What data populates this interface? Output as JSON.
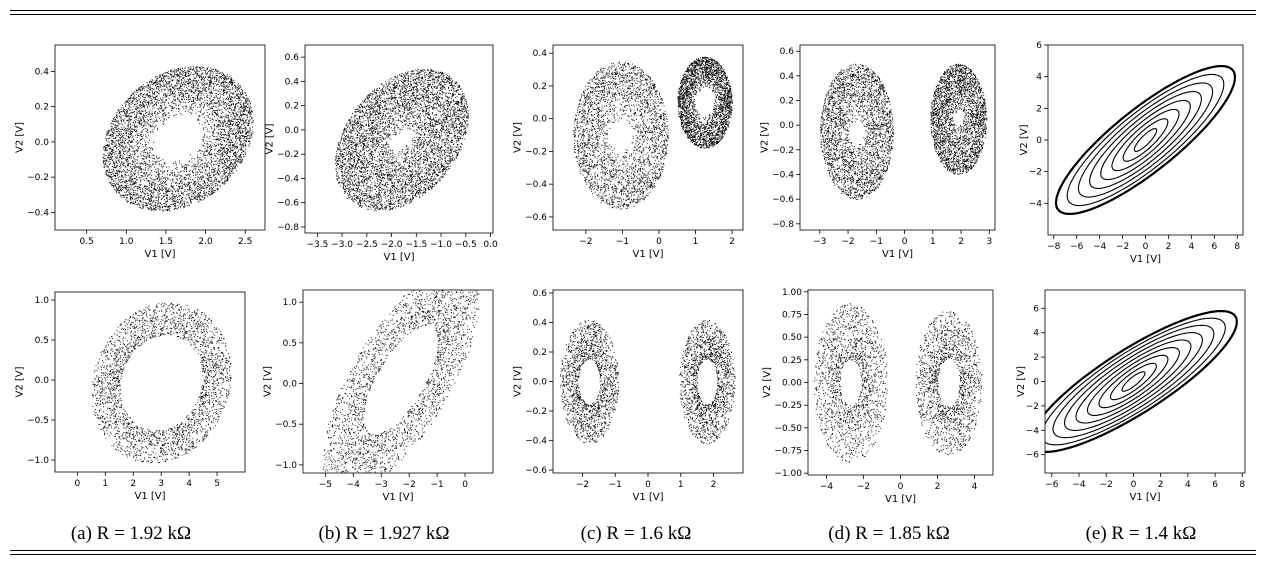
{
  "figure": {
    "captions": [
      "(a) R = 1.92 kΩ",
      "(b) R = 1.927 kΩ",
      "(c) R = 1.6 kΩ",
      "(d) R = 1.85 kΩ",
      "(e) R = 1.4 kΩ"
    ]
  },
  "chart_data": [
    {
      "id": "a-top",
      "type": "scatter",
      "style": "chaotic-ring",
      "xlabel": "V1 [V]",
      "ylabel": "V2 [V]",
      "xlim": [
        0.1,
        2.75
      ],
      "ylim": [
        -0.5,
        0.55
      ],
      "xticks": [
        0.5,
        1.0,
        1.5,
        2.0,
        2.5
      ],
      "xticklabels": [
        "0.5",
        "1.0",
        "1.5",
        "2.0",
        "2.5"
      ],
      "yticks": [
        -0.4,
        -0.2,
        0.0,
        0.2,
        0.4
      ],
      "yticklabels": [
        "−0.4",
        "−0.2",
        "0.0",
        "0.2",
        "0.4"
      ],
      "attractor": {
        "cx": 1.65,
        "cy": 0.02,
        "rx": 0.95,
        "ry": 0.4,
        "tilt": 0.1,
        "inner": 0.3
      }
    },
    {
      "id": "b-top",
      "type": "scatter",
      "style": "chaotic-ring",
      "xlabel": "V1 [V]",
      "ylabel": "V2 [V]",
      "xlim": [
        -3.75,
        0.05
      ],
      "ylim": [
        -0.85,
        0.7
      ],
      "xticks": [
        -3.5,
        -3.0,
        -2.5,
        -2.0,
        -1.5,
        -1.0,
        -0.5,
        0.0
      ],
      "xticklabels": [
        "−3.5",
        "−3.0",
        "−2.5",
        "−2.0",
        "−1.5",
        "−1.0",
        "−0.5",
        "0.0"
      ],
      "yticks": [
        -0.8,
        -0.6,
        -0.4,
        -0.2,
        0.0,
        0.2,
        0.4,
        0.6
      ],
      "yticklabels": [
        "−0.8",
        "−0.6",
        "−0.4",
        "−0.2",
        "0.0",
        "0.2",
        "0.4",
        "0.6"
      ],
      "attractor": {
        "cx": -1.8,
        "cy": -0.08,
        "rx": 1.35,
        "ry": 0.55,
        "tilt": 0.15,
        "inner": 0.12
      }
    },
    {
      "id": "c-top",
      "type": "scatter",
      "style": "chaotic-double",
      "xlabel": "V1 [V]",
      "ylabel": "V2 [V]",
      "xlim": [
        -2.9,
        2.3
      ],
      "ylim": [
        -0.68,
        0.45
      ],
      "xticks": [
        -2,
        -1,
        0,
        1,
        2
      ],
      "xticklabels": [
        "−2",
        "−1",
        "0",
        "1",
        "2"
      ],
      "yticks": [
        -0.6,
        -0.4,
        -0.2,
        0.0,
        0.2,
        0.4
      ],
      "yticklabels": [
        "−0.6",
        "−0.4",
        "−0.2",
        "0.0",
        "0.2",
        "0.4"
      ],
      "lobes": [
        {
          "cx": -1.05,
          "cy": -0.1,
          "rx": 1.3,
          "ry": 0.45,
          "inner": 0.2
        },
        {
          "cx": 1.25,
          "cy": 0.1,
          "rx": 0.75,
          "ry": 0.28,
          "inner": 0.3
        }
      ]
    },
    {
      "id": "d-top",
      "type": "scatter",
      "style": "chaotic-double",
      "xlabel": "V1 [V]",
      "ylabel": "V2 [V]",
      "xlim": [
        -3.7,
        3.2
      ],
      "ylim": [
        -0.85,
        0.65
      ],
      "xticks": [
        -3,
        -2,
        -1,
        0,
        1,
        2,
        3
      ],
      "xticklabels": [
        "−3",
        "−2",
        "−1",
        "0",
        "1",
        "2",
        "3"
      ],
      "yticks": [
        -0.8,
        -0.6,
        -0.4,
        -0.2,
        0.0,
        0.2,
        0.4,
        0.6
      ],
      "yticklabels": [
        "−0.8",
        "−0.6",
        "−0.4",
        "−0.2",
        "0.0",
        "0.2",
        "0.4",
        "0.6"
      ],
      "lobes": [
        {
          "cx": -1.7,
          "cy": -0.05,
          "rx": 1.3,
          "ry": 0.55,
          "inner": 0.15
        },
        {
          "cx": 1.9,
          "cy": 0.05,
          "rx": 1.0,
          "ry": 0.45,
          "inner": 0.12
        }
      ]
    },
    {
      "id": "e-top",
      "type": "line",
      "style": "hysteresis",
      "xlabel": "V1 [V]",
      "ylabel": "V2 [V]",
      "xlim": [
        -8.5,
        8.5
      ],
      "ylim": [
        -6,
        6
      ],
      "xticks": [
        -8,
        -6,
        -4,
        -2,
        0,
        2,
        4,
        6,
        8
      ],
      "xticklabels": [
        "−8",
        "−6",
        "−4",
        "−2",
        "0",
        "2",
        "4",
        "6",
        "8"
      ],
      "yticks": [
        -4,
        -2,
        0,
        2,
        4,
        6
      ],
      "yticklabels": [
        "−4",
        "−2",
        "0",
        "2",
        "4",
        "6"
      ],
      "loops": {
        "xmax": 7.8,
        "ymax": 5.5,
        "count": 8
      }
    },
    {
      "id": "a-bottom",
      "type": "scatter",
      "style": "dotted-ring",
      "xlabel": "V1 [V]",
      "ylabel": "V2 [V]",
      "xlim": [
        -0.8,
        6.0
      ],
      "ylim": [
        -1.15,
        1.1
      ],
      "xticks": [
        0,
        1,
        2,
        3,
        4,
        5
      ],
      "xticklabels": [
        "0",
        "1",
        "2",
        "3",
        "4",
        "5"
      ],
      "yticks": [
        -1.0,
        -0.5,
        0.0,
        0.5,
        1.0
      ],
      "yticklabels": [
        "−1.0",
        "−0.5",
        "0.0",
        "0.5",
        "1.0"
      ],
      "attractor": {
        "cx": 3.0,
        "cy": -0.03,
        "rx": 2.5,
        "ry": 1.0,
        "tilt": 0.05,
        "inner": 0.45
      }
    },
    {
      "id": "b-bottom",
      "type": "scatter",
      "style": "dotted-ring",
      "xlabel": "V1 [V]",
      "ylabel": "V2 [V]",
      "xlim": [
        -5.8,
        1.0
      ],
      "ylim": [
        -1.1,
        1.15
      ],
      "xticks": [
        -5,
        -4,
        -3,
        -2,
        -1,
        0
      ],
      "xticklabels": [
        "−5",
        "−4",
        "−3",
        "−2",
        "−1",
        "0"
      ],
      "yticks": [
        -1.0,
        -0.5,
        0.0,
        0.5,
        1.0
      ],
      "yticklabels": [
        "−1.0",
        "−0.5",
        "0.0",
        "0.5",
        "1.0"
      ],
      "attractor": {
        "cx": -2.3,
        "cy": 0.05,
        "rx": 2.8,
        "ry": 1.0,
        "tilt": 0.35,
        "inner": 0.3
      }
    },
    {
      "id": "c-bottom",
      "type": "scatter",
      "style": "dotted-double",
      "xlabel": "V1 [V]",
      "ylabel": "V2 [V]",
      "xlim": [
        -2.9,
        2.9
      ],
      "ylim": [
        -0.62,
        0.62
      ],
      "xticks": [
        -2,
        -1,
        0,
        1,
        2
      ],
      "xticklabels": [
        "−2",
        "−1",
        "0",
        "1",
        "2"
      ],
      "yticks": [
        -0.6,
        -0.4,
        -0.2,
        0.0,
        0.2,
        0.4,
        0.6
      ],
      "yticklabels": [
        "−0.6",
        "−0.4",
        "−0.2",
        "0.0",
        "0.2",
        "0.4",
        "0.6"
      ],
      "lobes": [
        {
          "cx": -1.8,
          "cy": 0.0,
          "rx": 0.9,
          "ry": 0.42,
          "inner": 0.15
        },
        {
          "cx": 1.8,
          "cy": 0.0,
          "rx": 0.85,
          "ry": 0.42,
          "inner": 0.15
        }
      ]
    },
    {
      "id": "d-bottom",
      "type": "scatter",
      "style": "dotted-double",
      "xlabel": "V1 [V]",
      "ylabel": "V2 [V]",
      "xlim": [
        -5.0,
        5.0
      ],
      "ylim": [
        -1.02,
        1.02
      ],
      "xticks": [
        -4,
        -2,
        0,
        2,
        4
      ],
      "xticklabels": [
        "−4",
        "−2",
        "0",
        "2",
        "4"
      ],
      "yticks": [
        -1.0,
        -0.75,
        -0.5,
        -0.25,
        0.0,
        0.25,
        0.5,
        0.75,
        1.0
      ],
      "yticklabels": [
        "−1.00",
        "−0.75",
        "−0.50",
        "−0.25",
        "0.00",
        "0.25",
        "0.50",
        "0.75",
        "1.00"
      ],
      "lobes": [
        {
          "cx": -2.7,
          "cy": 0.0,
          "rx": 2.0,
          "ry": 0.88,
          "inner": 0.05
        },
        {
          "cx": 2.6,
          "cy": 0.0,
          "rx": 1.8,
          "ry": 0.8,
          "inner": 0.1
        }
      ]
    },
    {
      "id": "e-bottom",
      "type": "line",
      "style": "hysteresis",
      "xlabel": "V1 [V]",
      "ylabel": "V2 [V]",
      "xlim": [
        -6.5,
        8.2
      ],
      "ylim": [
        -7.5,
        7.5
      ],
      "xticks": [
        -6,
        -4,
        -2,
        0,
        2,
        4,
        6,
        8
      ],
      "xticklabels": [
        "−6",
        "−4",
        "−2",
        "0",
        "2",
        "4",
        "6",
        "8"
      ],
      "yticks": [
        -6,
        -4,
        -2,
        0,
        2,
        4,
        6
      ],
      "yticklabels": [
        "−6",
        "−4",
        "−2",
        "0",
        "2",
        "4",
        "6"
      ],
      "loops": {
        "xmax": 7.6,
        "ymax": 6.8,
        "count": 9
      }
    }
  ]
}
